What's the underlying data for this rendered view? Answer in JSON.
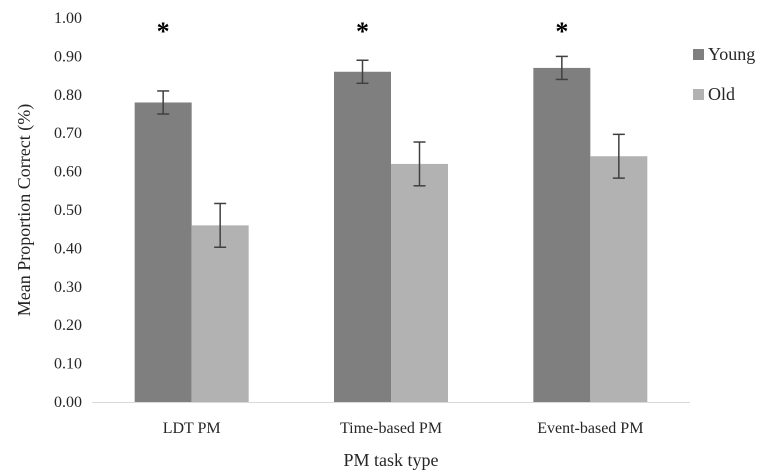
{
  "chart_data": {
    "type": "bar",
    "categories": [
      "LDT PM",
      "Time-based PM",
      "Event-based PM"
    ],
    "series": [
      {
        "name": "Young",
        "values": [
          0.78,
          0.86,
          0.87
        ],
        "errors": [
          0.03,
          0.03,
          0.03
        ],
        "color": "#7f7f7f"
      },
      {
        "name": "Old",
        "values": [
          0.46,
          0.62,
          0.64
        ],
        "errors": [
          0.057,
          0.057,
          0.057
        ],
        "color": "#b2b2b2"
      }
    ],
    "xlabel": "PM task type",
    "ylabel": "Mean Proportion Correct (%)",
    "ylim": [
      0,
      1.0
    ],
    "yticks": [
      "0.00",
      "0.10",
      "0.20",
      "0.30",
      "0.40",
      "0.50",
      "0.60",
      "0.70",
      "0.80",
      "0.90",
      "1.00"
    ],
    "significance_markers": [
      "*",
      "*",
      "*"
    ],
    "legend_position": "right",
    "grid": false
  }
}
